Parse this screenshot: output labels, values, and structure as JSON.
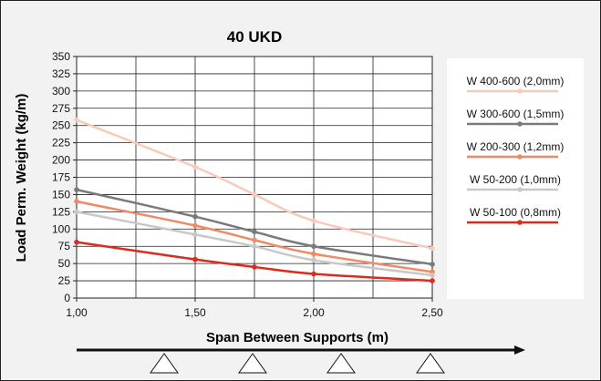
{
  "chart_data": {
    "type": "line",
    "title": "40 UKD",
    "xlabel": "Span Between Supports (m)",
    "ylabel": "Load Perm. Weight (kg/m)",
    "x": [
      1.0,
      1.5,
      1.75,
      2.0,
      2.5
    ],
    "x_ticks": [
      "1,00",
      "1,50",
      "2,00",
      "2,50"
    ],
    "y_ticks": [
      "0",
      "25",
      "50",
      "75",
      "100",
      "125",
      "150",
      "175",
      "200",
      "225",
      "250",
      "275",
      "300",
      "325",
      "350"
    ],
    "xlim": [
      1.0,
      2.5
    ],
    "ylim": [
      0,
      350
    ],
    "grid": true,
    "legend_position": "right",
    "series": [
      {
        "name": "W 400-600 (2,0mm)",
        "color": "#f9c9ba",
        "values": [
          258,
          190,
          150,
          112,
          72
        ]
      },
      {
        "name": "W 300-600 (1,5mm)",
        "color": "#7a7a7a",
        "values": [
          157,
          118,
          96,
          75,
          49
        ]
      },
      {
        "name": "W 200-300 (1,2mm)",
        "color": "#f08a66",
        "values": [
          140,
          105,
          84,
          64,
          38
        ]
      },
      {
        "name": "W 50-200 (1,0mm)",
        "color": "#c8c8c8",
        "values": [
          125,
          92,
          75,
          55,
          33
        ]
      },
      {
        "name": "W 50-100 (0,8mm)",
        "color": "#dd2a1f",
        "values": [
          81,
          56,
          45,
          35,
          25
        ]
      }
    ]
  }
}
